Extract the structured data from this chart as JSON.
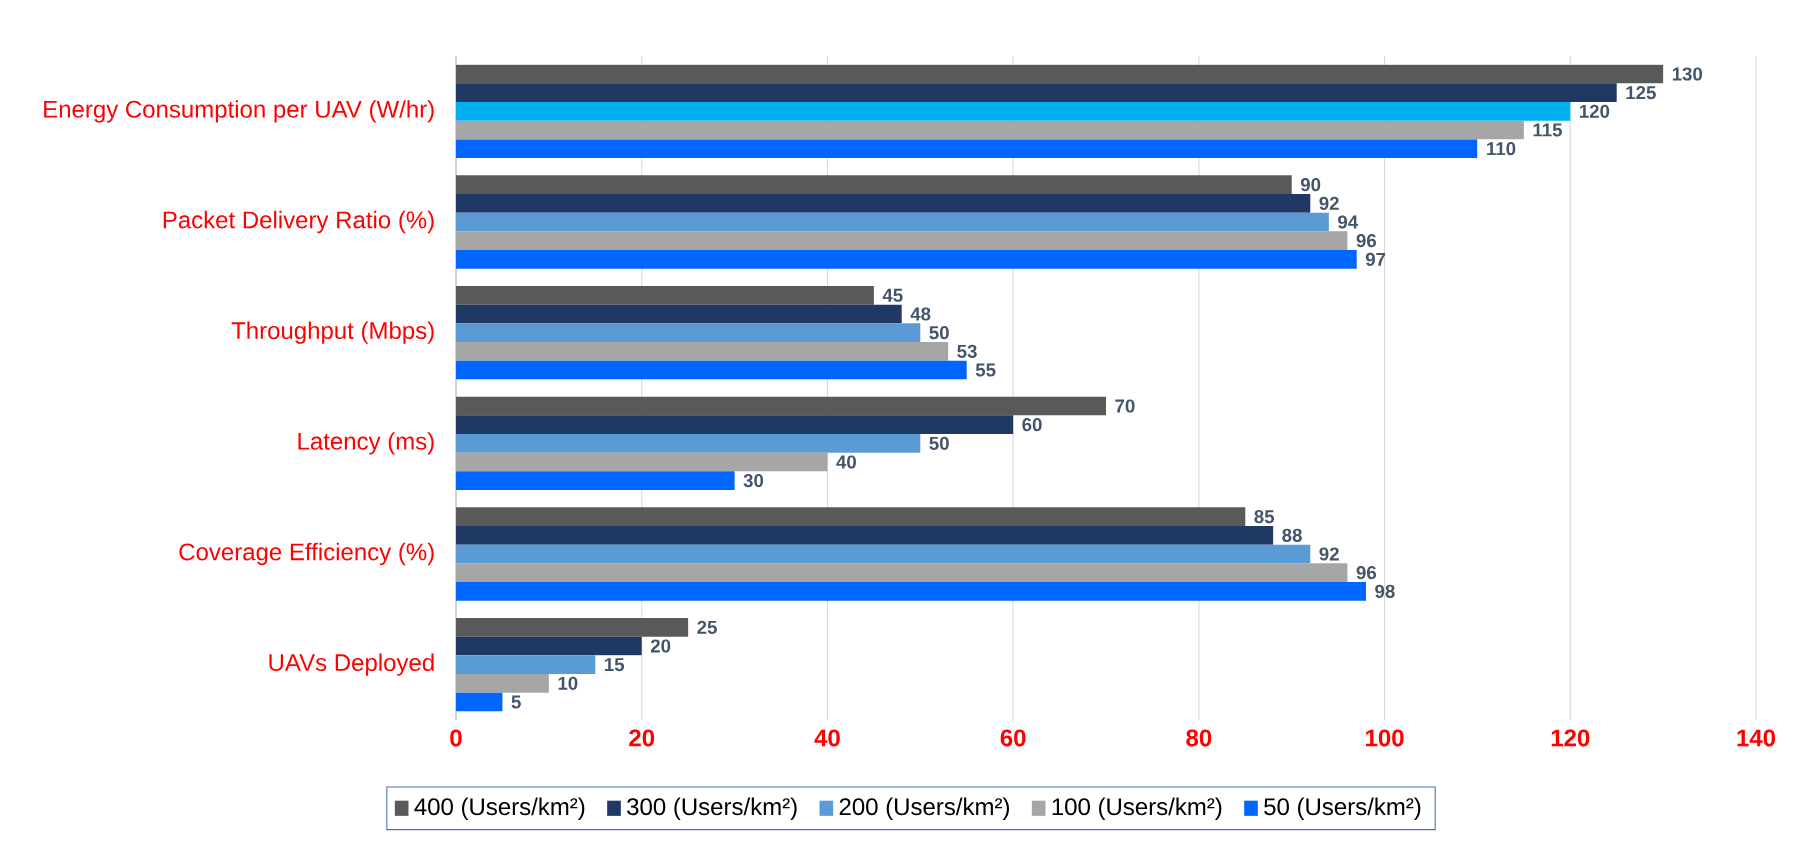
{
  "chart_data": {
    "type": "bar",
    "orientation": "horizontal",
    "categories": [
      "Energy Consumption per UAV (W/hr)",
      "Packet Delivery Ratio (%)",
      "Throughput (Mbps)",
      "Latency (ms)",
      "Coverage Efficiency (%)",
      "UAVs Deployed"
    ],
    "series": [
      {
        "name": "400 (Users/km²)",
        "color": "#595959",
        "values": [
          130,
          90,
          45,
          70,
          85,
          25
        ]
      },
      {
        "name": "300 (Users/km²)",
        "color": "#203864",
        "values": [
          125,
          92,
          48,
          60,
          88,
          20
        ]
      },
      {
        "name": "200 (Users/km²)",
        "color": "#5b9bd5",
        "colors": [
          "#00b0f0",
          "#5b9bd5",
          "#5b9bd5",
          "#5b9bd5",
          "#5b9bd5",
          "#5b9bd5"
        ],
        "values": [
          120,
          94,
          50,
          50,
          92,
          15
        ]
      },
      {
        "name": "100 (Users/km²)",
        "color": "#a6a6a6",
        "values": [
          115,
          96,
          53,
          40,
          96,
          10
        ]
      },
      {
        "name": "50 (Users/km²)",
        "color": "#0066ff",
        "values": [
          110,
          97,
          55,
          30,
          98,
          5
        ]
      }
    ],
    "xlim": [
      0,
      140
    ],
    "xticks": [
      0,
      20,
      40,
      60,
      80,
      100,
      120,
      140
    ],
    "grid": "x",
    "legend": "bottom",
    "data_labels": true
  }
}
